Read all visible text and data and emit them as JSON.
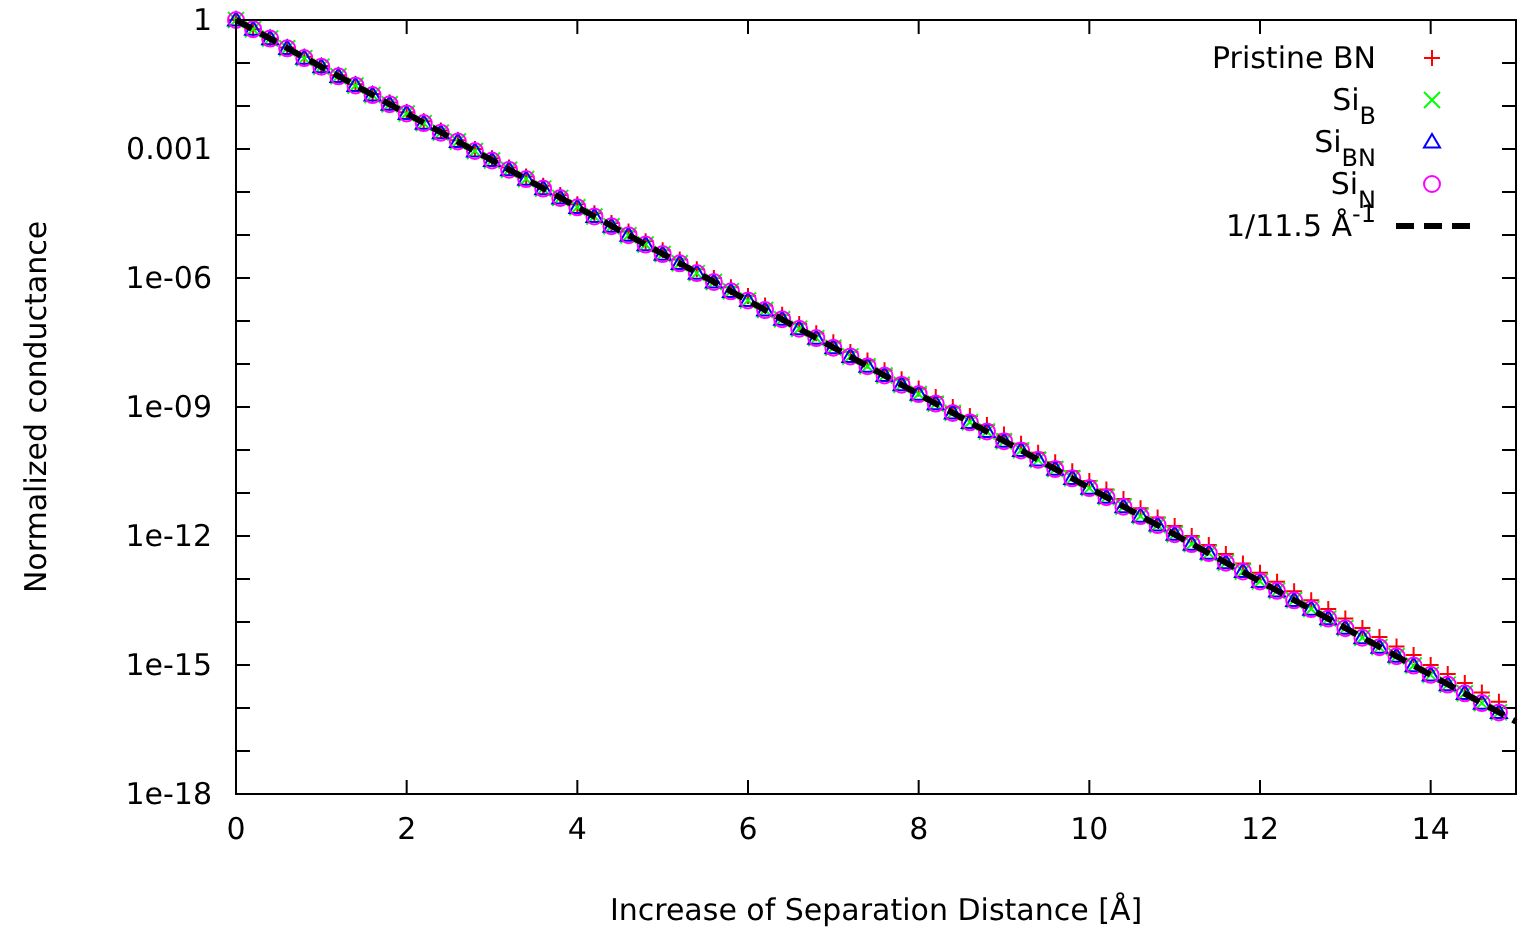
{
  "chart_data": {
    "type": "scatter",
    "xlabel": "Increase of Separation Distance [Å]",
    "ylabel": "Normalized conductance",
    "log": "y",
    "xlim": [
      0,
      15
    ],
    "xticks": [
      0,
      2,
      4,
      6,
      8,
      10,
      12,
      14
    ],
    "ylim": [
      1e-18,
      1
    ],
    "yticks": [
      {
        "value": 1e-18,
        "label": "1e-18"
      },
      {
        "value": 1e-17,
        "label": null
      },
      {
        "value": 1e-16,
        "label": null
      },
      {
        "value": 1e-15,
        "label": "1e-15"
      },
      {
        "value": 1e-14,
        "label": null
      },
      {
        "value": 1e-13,
        "label": null
      },
      {
        "value": 1e-12,
        "label": "1e-12"
      },
      {
        "value": 1e-11,
        "label": null
      },
      {
        "value": 1e-10,
        "label": null
      },
      {
        "value": 1e-09,
        "label": "1e-09"
      },
      {
        "value": 1e-08,
        "label": null
      },
      {
        "value": 1e-07,
        "label": null
      },
      {
        "value": 1e-06,
        "label": "1e-06"
      },
      {
        "value": 1e-05,
        "label": null
      },
      {
        "value": 0.0001,
        "label": null
      },
      {
        "value": 0.001,
        "label": "0.001"
      },
      {
        "value": 0.01,
        "label": null
      },
      {
        "value": 0.1,
        "label": null
      },
      {
        "value": 1,
        "label": "1"
      }
    ],
    "grid": false,
    "legend": "top right",
    "x": [
      0,
      0.2,
      0.4,
      0.6,
      0.8,
      1,
      1.2,
      1.4,
      1.6,
      1.8,
      2,
      2.2,
      2.4,
      2.6,
      2.8,
      3,
      3.2,
      3.4,
      3.6,
      3.8,
      4,
      4.2,
      4.4,
      4.6,
      4.8,
      5,
      5.2,
      5.4,
      5.6,
      5.8,
      6,
      6.2,
      6.4,
      6.6,
      6.8,
      7,
      7.2,
      7.4,
      7.6,
      7.8,
      8,
      8.2,
      8.4,
      8.6,
      8.8,
      9,
      9.2,
      9.4,
      9.6,
      9.8,
      10,
      10.2,
      10.4,
      10.6,
      10.8,
      11,
      11.2,
      11.4,
      11.6,
      11.8,
      12,
      12.2,
      12.4,
      12.6,
      12.8,
      13,
      13.2,
      13.4,
      13.6,
      13.8,
      14,
      14.2,
      14.4,
      14.6,
      14.8
    ],
    "series": [
      {
        "name": "Pristine BN",
        "color": "#ff0000",
        "marker": "plus",
        "values": [
          1,
          0.61,
          0.37,
          0.23,
          0.14,
          0.085,
          0.052,
          0.032,
          0.019,
          0.012,
          0.0072,
          0.0044,
          0.0027,
          0.0016,
          0.001,
          0.00061,
          0.00037,
          0.00023,
          0.00014,
          8.5e-05,
          5.2e-05,
          3.2e-05,
          1.9e-05,
          1.2e-05,
          7.2e-06,
          4.4e-06,
          2.7e-06,
          1.6e-06,
          1e-06,
          6.1e-07,
          3.8e-07,
          2.3e-07,
          1.4e-07,
          8.5e-08,
          5.2e-08,
          3.2e-08,
          1.9e-08,
          1.2e-08,
          7.2e-09,
          4.4e-09,
          2.7e-09,
          1.7e-09,
          1e-09,
          6.2e-10,
          3.8e-10,
          2.3e-10,
          1.4e-10,
          8.6e-11,
          5.2e-11,
          3.2e-11,
          1.9e-11,
          1.2e-11,
          7.3e-12,
          4.4e-12,
          2.7e-12,
          1.7e-12,
          1e-12,
          6.2e-13,
          3.8e-13,
          2.3e-13,
          1.4e-13,
          8.6e-14,
          5.2e-14,
          3.2e-14,
          2e-14,
          1.2e-14,
          7.3e-15,
          4.5e-15,
          2.7e-15,
          1.7e-15,
          1e-15,
          6.2e-16,
          3.8e-16,
          2.3e-16,
          1.4e-16
        ]
      },
      {
        "name": "Si$_{B}$",
        "color": "#00ff00",
        "marker": "cross",
        "values": [
          1,
          0.61,
          0.37,
          0.22,
          0.13,
          0.082,
          0.049,
          0.03,
          0.018,
          0.011,
          0.0067,
          0.004,
          0.0024,
          0.0015,
          0.0009,
          0.00054,
          0.00033,
          0.0002,
          0.00012,
          7.3e-05,
          4.4e-05,
          2.7e-05,
          1.6e-05,
          9.9e-06,
          6e-06,
          3.6e-06,
          2.2e-06,
          1.3e-06,
          8.1e-07,
          4.9e-07,
          3e-07,
          1.8e-07,
          1.1e-07,
          6.6e-08,
          4e-08,
          2.4e-08,
          1.5e-08,
          8.9e-09,
          5.4e-09,
          3.3e-09,
          2e-09,
          1.2e-09,
          7.3e-10,
          4.4e-10,
          2.7e-10,
          1.6e-10,
          9.8e-11,
          5.9e-11,
          3.6e-11,
          2.2e-11,
          1.3e-11,
          8e-12,
          4.8e-12,
          2.9e-12,
          1.8e-12,
          1.1e-12,
          6.5e-13,
          4e-13,
          2.4e-13,
          1.5e-13,
          8.8e-14,
          5.3e-14,
          3.2e-14,
          2e-14,
          1.2e-14,
          7.2e-15,
          4.3e-15,
          2.6e-15,
          1.6e-15,
          9.7e-16,
          5.9e-16,
          3.5e-16,
          2.2e-16,
          1.3e-16,
          7.9e-17
        ]
      },
      {
        "name": "Si$_{BN}$",
        "color": "#0000ff",
        "marker": "triangle",
        "values": [
          1,
          0.61,
          0.37,
          0.22,
          0.13,
          0.082,
          0.049,
          0.03,
          0.018,
          0.011,
          0.0067,
          0.004,
          0.0024,
          0.0015,
          0.0009,
          0.00054,
          0.00033,
          0.0002,
          0.00012,
          7.3e-05,
          4.4e-05,
          2.7e-05,
          1.6e-05,
          9.9e-06,
          6e-06,
          3.6e-06,
          2.2e-06,
          1.3e-06,
          8.1e-07,
          4.9e-07,
          3e-07,
          1.8e-07,
          1.1e-07,
          6.6e-08,
          4e-08,
          2.4e-08,
          1.5e-08,
          8.9e-09,
          5.4e-09,
          3.3e-09,
          2e-09,
          1.2e-09,
          7.3e-10,
          4.4e-10,
          2.7e-10,
          1.6e-10,
          9.8e-11,
          5.9e-11,
          3.6e-11,
          2.2e-11,
          1.3e-11,
          8e-12,
          4.8e-12,
          2.9e-12,
          1.8e-12,
          1.1e-12,
          6.5e-13,
          4e-13,
          2.4e-13,
          1.5e-13,
          8.8e-14,
          5.3e-14,
          3.2e-14,
          2e-14,
          1.2e-14,
          7.2e-15,
          4.3e-15,
          2.6e-15,
          1.6e-15,
          9.7e-16,
          5.9e-16,
          3.5e-16,
          2.2e-16,
          1.3e-16,
          7.9e-17
        ]
      },
      {
        "name": "Si$_{N}$",
        "color": "#ff00ff",
        "marker": "circle",
        "values": [
          1,
          0.61,
          0.37,
          0.22,
          0.13,
          0.082,
          0.049,
          0.03,
          0.018,
          0.011,
          0.0067,
          0.004,
          0.0024,
          0.0015,
          0.0009,
          0.00054,
          0.00033,
          0.0002,
          0.00012,
          7.3e-05,
          4.4e-05,
          2.7e-05,
          1.6e-05,
          9.9e-06,
          6e-06,
          3.6e-06,
          2.2e-06,
          1.3e-06,
          8.1e-07,
          4.9e-07,
          3e-07,
          1.8e-07,
          1.1e-07,
          6.6e-08,
          4e-08,
          2.4e-08,
          1.5e-08,
          8.9e-09,
          5.4e-09,
          3.3e-09,
          2e-09,
          1.2e-09,
          7.3e-10,
          4.4e-10,
          2.7e-10,
          1.6e-10,
          9.8e-11,
          5.9e-11,
          3.6e-11,
          2.2e-11,
          1.3e-11,
          8e-12,
          4.8e-12,
          2.9e-12,
          1.8e-12,
          1.1e-12,
          6.5e-13,
          4e-13,
          2.4e-13,
          1.5e-13,
          8.8e-14,
          5.3e-14,
          3.2e-14,
          2e-14,
          1.2e-14,
          7.2e-15,
          4.3e-15,
          2.6e-15,
          1.6e-15,
          9.7e-16,
          5.9e-16,
          3.5e-16,
          2.2e-16,
          1.3e-16,
          7.9e-17
        ]
      },
      {
        "name": "1/11.5 Å$^{-1}$",
        "type": "line",
        "color": "#000000",
        "marker": "none",
        "line_style": "dashed",
        "x": [
          0,
          15
        ],
        "values": [
          1,
          4.8e-17
        ]
      }
    ]
  }
}
